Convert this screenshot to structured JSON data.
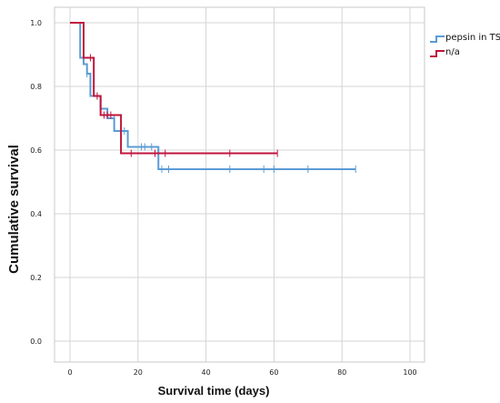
{
  "chart_data": {
    "type": "line",
    "step": true,
    "xlabel": "Survival time (days)",
    "ylabel": "Cumulative survival",
    "xlim": [
      0,
      100
    ],
    "ylim": [
      0.0,
      1.0
    ],
    "x_ticks": [
      "0",
      "20",
      "40",
      "60",
      "80",
      "100"
    ],
    "y_ticks": [
      "0.0",
      "0.2",
      "0.4",
      "0.6",
      "0.8",
      "1.0"
    ],
    "grid": true,
    "legend_position": "top-right",
    "series": [
      {
        "name": "pepsin in TS",
        "color": "#5b9bd5",
        "steps": [
          [
            0,
            1.0
          ],
          [
            3,
            0.89
          ],
          [
            4,
            0.87
          ],
          [
            5,
            0.84
          ],
          [
            6,
            0.77
          ],
          [
            9,
            0.73
          ],
          [
            11,
            0.7
          ],
          [
            13,
            0.66
          ],
          [
            17,
            0.61
          ],
          [
            26,
            0.54
          ],
          [
            84,
            0.54
          ]
        ],
        "censored": [
          [
            4,
            0.89
          ],
          [
            5,
            0.84
          ],
          [
            8,
            0.77
          ],
          [
            13,
            0.7
          ],
          [
            16,
            0.66
          ],
          [
            21,
            0.61
          ],
          [
            22,
            0.61
          ],
          [
            24,
            0.61
          ],
          [
            27,
            0.54
          ],
          [
            29,
            0.54
          ],
          [
            47,
            0.54
          ],
          [
            57,
            0.54
          ],
          [
            60,
            0.54
          ],
          [
            70,
            0.54
          ],
          [
            84,
            0.54
          ]
        ]
      },
      {
        "name": "n/a",
        "color": "#c0143c",
        "steps": [
          [
            0,
            1.0
          ],
          [
            4,
            0.89
          ],
          [
            7,
            0.77
          ],
          [
            9,
            0.71
          ],
          [
            15,
            0.59
          ],
          [
            61,
            0.59
          ]
        ],
        "censored": [
          [
            6,
            0.89
          ],
          [
            8,
            0.77
          ],
          [
            10,
            0.71
          ],
          [
            11,
            0.71
          ],
          [
            12,
            0.71
          ],
          [
            18,
            0.59
          ],
          [
            25,
            0.59
          ],
          [
            28,
            0.59
          ],
          [
            47,
            0.59
          ],
          [
            61,
            0.59
          ]
        ]
      }
    ]
  }
}
